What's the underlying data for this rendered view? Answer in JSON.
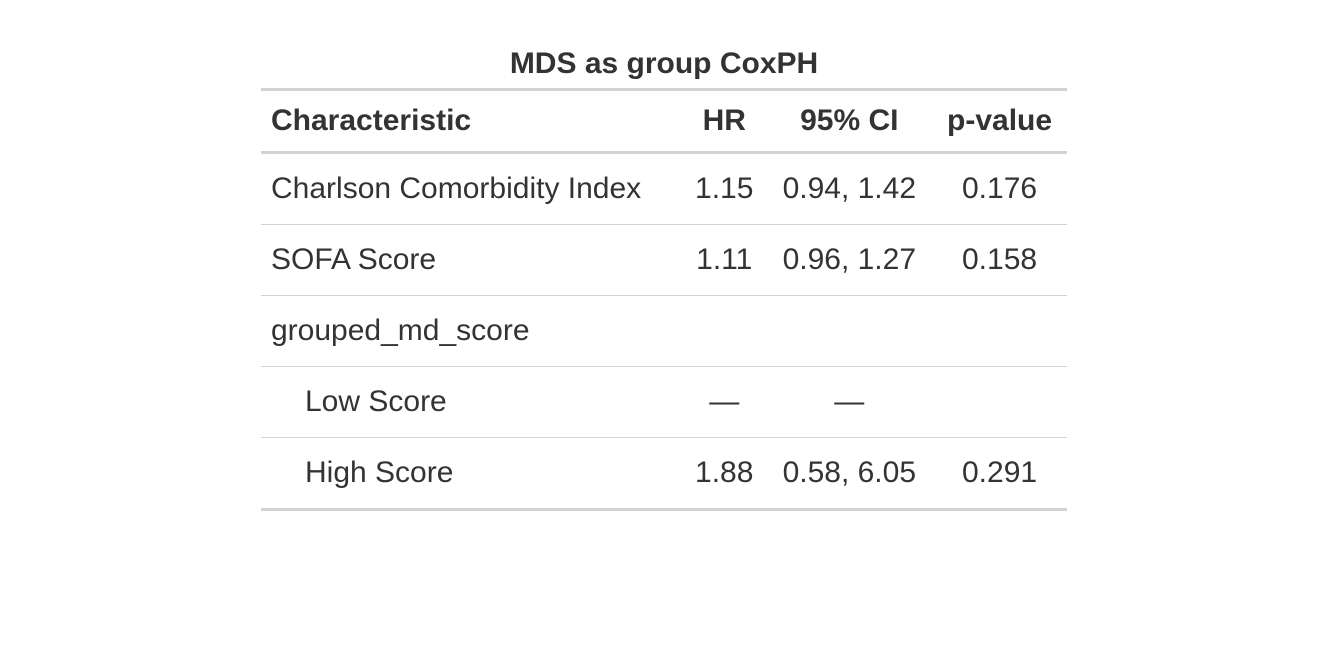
{
  "table": {
    "title": "MDS as group CoxPH",
    "headers": {
      "characteristic": "Characteristic",
      "hr": "HR",
      "ci": "95% CI",
      "p": "p-value"
    },
    "rows": [
      {
        "label": "Charlson Comorbidity Index",
        "hr": "1.15",
        "ci": "0.94, 1.42",
        "p": "0.176"
      },
      {
        "label": "SOFA Score",
        "hr": "1.11",
        "ci": "0.96, 1.27",
        "p": "0.158"
      },
      {
        "label": "grouped_md_score",
        "hr": "",
        "ci": "",
        "p": ""
      },
      {
        "label": "Low Score",
        "hr": "—",
        "ci": "—",
        "p": ""
      },
      {
        "label": "High Score",
        "hr": "1.88",
        "ci": "0.58, 6.05",
        "p": "0.291"
      }
    ]
  }
}
